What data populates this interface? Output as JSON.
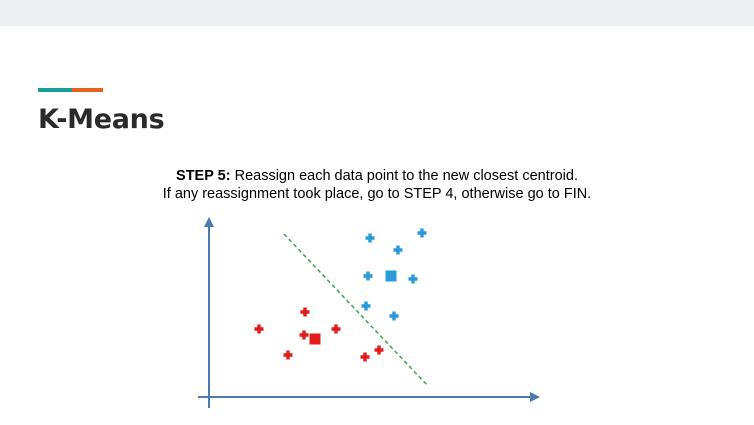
{
  "slide": {
    "title": "K-Means"
  },
  "caption": {
    "step_label": "STEP 5:",
    "line1_text": " Reassign each data point to the new closest centroid.",
    "line2_text": "If any reassignment took place, go to STEP 4, otherwise go to FIN."
  },
  "colors": {
    "accent_teal": "#1a9c94",
    "accent_orange": "#e8611e",
    "axis": "#4a79b0",
    "cluster_blue": "#2a9ad8",
    "cluster_red": "#e21a1a",
    "divider": "#3aa54a"
  },
  "diagram": {
    "clusters": [
      {
        "name": "blue",
        "points": 8,
        "centroid_shape": "square"
      },
      {
        "name": "red",
        "points": 8,
        "centroid_shape": "square"
      }
    ],
    "divider_style": "dashed"
  }
}
